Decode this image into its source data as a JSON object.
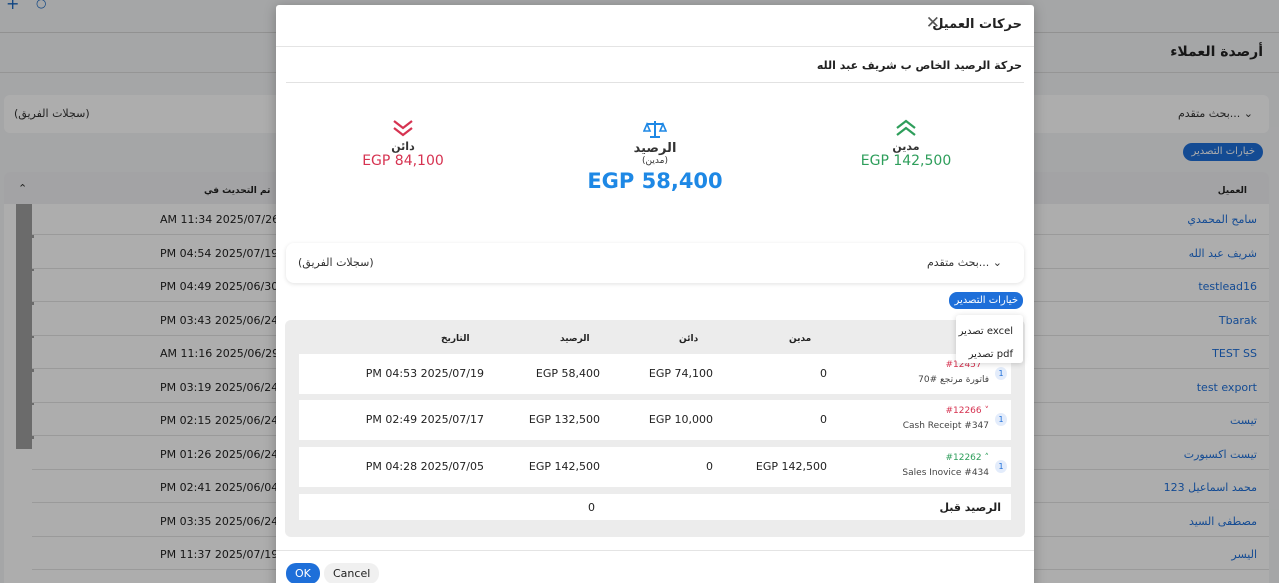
{
  "background": {
    "page_title": "أرصدة العملاء",
    "advanced_search": "بحث متقدم...",
    "team_records": "(سجلات الفريق)",
    "export_options": "خيارات التصدير",
    "columns": {
      "client": "العميل",
      "updated": "تم التحديث في"
    },
    "rows": [
      {
        "name": "سامح المحمدي",
        "date": "AM 11:34 2025/07/26"
      },
      {
        "name": "شريف عبد الله",
        "date": "PM 04:54 2025/07/19"
      },
      {
        "name": "testlead16",
        "date": "PM 04:49 2025/06/30"
      },
      {
        "name": "Tbarak",
        "date": "PM 03:43 2025/06/24"
      },
      {
        "name": "TEST SS",
        "date": "AM 11:16 2025/06/29"
      },
      {
        "name": "test export",
        "date": "PM 03:19 2025/06/24"
      },
      {
        "name": "تيست",
        "date": "PM 02:15 2025/06/24"
      },
      {
        "name": "تيست اكسبورت",
        "date": "PM 01:26 2025/06/24"
      },
      {
        "name": "محمد اسماعيل 123",
        "date": "PM 02:41 2025/06/04"
      },
      {
        "name": "مصطفى السيد",
        "date": "PM 03:35 2025/06/24"
      },
      {
        "name": "اليسر",
        "date": "PM 11:37 2025/07/19"
      }
    ]
  },
  "modal": {
    "title": "حركات العميل",
    "subtitle": "حركة الرصيد الخاص ب شريف عبد الله",
    "summary": {
      "debit": {
        "label": "مدين",
        "amount": "EGP 142,500",
        "color": "#2e9e5b"
      },
      "balance": {
        "label": "الرصيد",
        "sub": "(مدين)",
        "amount": "EGP 58,400",
        "color": "#1e88e5"
      },
      "credit": {
        "label": "دائن",
        "amount": "EGP 84,100",
        "color": "#d63351"
      }
    },
    "filter": {
      "advanced_search": "بحث متقدم...",
      "team_records": "(سجلات الفريق)"
    },
    "export_button": "خيارات التصدير",
    "export_menu": [
      "تصدير excel",
      "تصدير pdf"
    ],
    "table": {
      "columns": {
        "debit": "مدين",
        "credit": "دائن",
        "balance": "الرصيد",
        "date": "التاريخ"
      },
      "rows": [
        {
          "badge": "1",
          "ref": "#12457",
          "direction": "down",
          "desc": "فاتورة مرتجع #70",
          "debit": "0",
          "credit": "EGP 74,100",
          "balance": "EGP 58,400",
          "date": "PM 04:53 2025/07/19"
        },
        {
          "badge": "1",
          "ref": "#12266",
          "direction": "down",
          "desc": "Cash Receipt #347",
          "debit": "0",
          "credit": "EGP 10,000",
          "balance": "EGP 132,500",
          "date": "PM 02:49 2025/07/17"
        },
        {
          "badge": "1",
          "ref": "#12262",
          "direction": "up",
          "desc": "Sales Inovice #434",
          "debit": "EGP 142,500",
          "credit": "0",
          "balance": "EGP 142,500",
          "date": "PM 04:28 2025/07/05"
        }
      ],
      "previous_balance": {
        "label": "الرصيد قبل",
        "value": "0"
      }
    },
    "footer": {
      "ok": "OK",
      "cancel": "Cancel"
    }
  }
}
